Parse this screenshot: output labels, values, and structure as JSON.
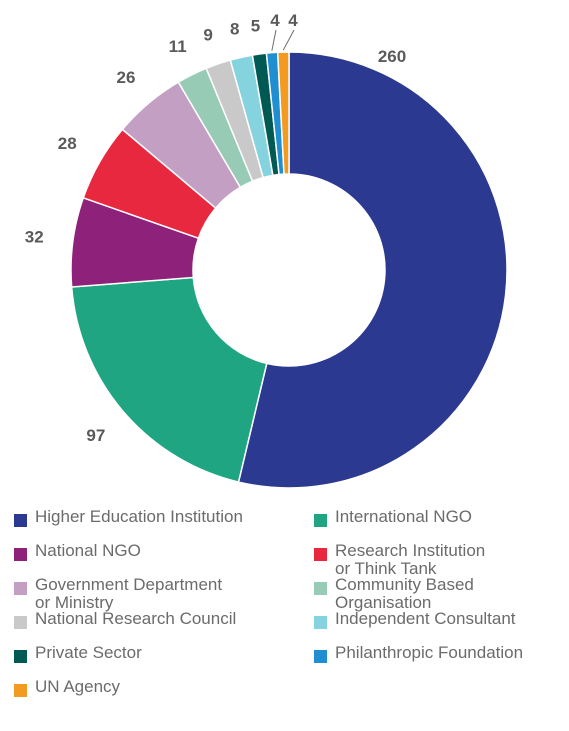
{
  "chart_data": {
    "type": "pie",
    "variant": "donut",
    "categories": [
      "Higher Education Institution",
      "International NGO",
      "National NGO",
      "Research Institution or Think Tank",
      "Government Department or Ministry",
      "Community Based Organisation",
      "National Research Council",
      "Independent Consultant",
      "Private Sector",
      "Philanthropic Foundation",
      "UN Agency"
    ],
    "values": [
      260,
      97,
      32,
      28,
      26,
      11,
      9,
      8,
      5,
      4,
      4
    ],
    "colors": [
      "#2b3990",
      "#20a583",
      "#8e2179",
      "#e8283f",
      "#c39fc3",
      "#97cbb5",
      "#c9c9c9",
      "#86d3e0",
      "#005a53",
      "#1f8fd1",
      "#f39a21"
    ],
    "legend_position": "bottom",
    "legend": [
      {
        "label": "Higher Education Institution",
        "color": "#2b3990"
      },
      {
        "label": "International NGO",
        "color": "#20a583"
      },
      {
        "label": "National NGO",
        "color": "#8e2179"
      },
      {
        "label": "Research Institution\nor Think Tank",
        "color": "#e8283f"
      },
      {
        "label": "Government Department\nor Ministry",
        "color": "#c39fc3"
      },
      {
        "label": "Community Based\nOrganisation",
        "color": "#97cbb5"
      },
      {
        "label": "National Research Council",
        "color": "#c9c9c9"
      },
      {
        "label": "Independent Consultant",
        "color": "#86d3e0"
      },
      {
        "label": "Private Sector",
        "color": "#005a53"
      },
      {
        "label": "Philanthropic Foundation",
        "color": "#1f8fd1"
      },
      {
        "label": "UN Agency",
        "color": "#f39a21"
      }
    ]
  }
}
